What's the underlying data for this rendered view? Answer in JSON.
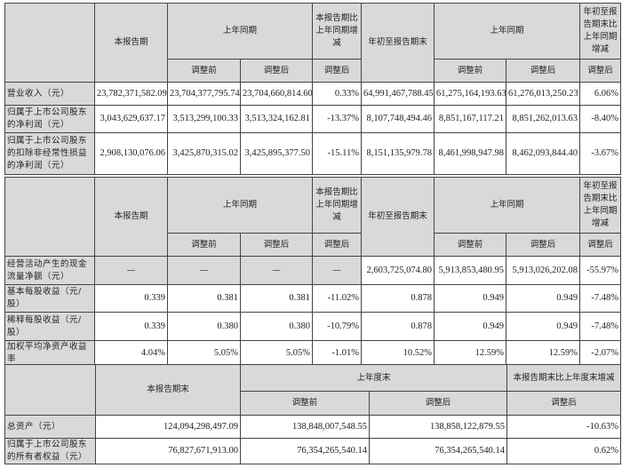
{
  "table1": {
    "h": {
      "current": "本报告期",
      "prior": "上年同期",
      "before": "调整前",
      "after": "调整后",
      "chg": "本报告期比上年同期增减",
      "ytd": "年初至报告期末",
      "prior2": "上年同期",
      "ytdchg": "年初至报告期末比上年同期增减"
    },
    "rows": [
      {
        "label": "营业收入（元）",
        "v": [
          "23,782,371,582.09",
          "23,704,377,795.74",
          "23,704,660,814.60",
          "0.33%",
          "64,991,467,788.45",
          "61,275,164,193.63",
          "61,276,013,250.23",
          "6.06%"
        ]
      },
      {
        "label": "归属于上市公司股东的净利润（元）",
        "v": [
          "3,043,629,637.17",
          "3,513,299,100.33",
          "3,513,324,162.81",
          "-13.37%",
          "8,107,748,494.46",
          "8,851,167,117.21",
          "8,851,262,013.63",
          "-8.40%"
        ]
      },
      {
        "label": "归属于上市公司股东的扣除非经常性损益的净利润（元）",
        "v": [
          "2,908,130,076.06",
          "3,425,870,315.02",
          "3,425,895,377.50",
          "-15.11%",
          "8,151,135,979.78",
          "8,461,998,947.98",
          "8,462,093,844.40",
          "-3.67%"
        ]
      }
    ]
  },
  "table2": {
    "rows": [
      {
        "label": "经营活动产生的现金流量净额（元）",
        "v": [
          "—",
          "—",
          "—",
          "—",
          "2,603,725,074.80",
          "5,913,853,480.95",
          "5,913,026,202.08",
          "-55.97%"
        ]
      },
      {
        "label": "基本每股收益（元/股）",
        "v": [
          "0.339",
          "0.381",
          "0.381",
          "-11.02%",
          "0.878",
          "0.949",
          "0.949",
          "-7.48%"
        ]
      },
      {
        "label": "稀释每股收益（元/股）",
        "v": [
          "0.339",
          "0.380",
          "0.380",
          "-10.79%",
          "0.878",
          "0.949",
          "0.949",
          "-7.48%"
        ]
      },
      {
        "label": "加权平均净资产收益率",
        "v": [
          "4.04%",
          "5.05%",
          "5.05%",
          "-1.01%",
          "10.52%",
          "12.59%",
          "12.59%",
          "-2.07%"
        ]
      }
    ]
  },
  "table3": {
    "h": {
      "current": "本报告期末",
      "prior": "上年度末",
      "before": "调整前",
      "after": "调整后",
      "chg": "本报告期末比上年度末增减",
      "chgafter": "调整后"
    },
    "rows": [
      {
        "label": "总资产（元）",
        "v": [
          "124,094,298,497.09",
          "138,848,007,548.55",
          "138,858,122,879.55",
          "-10.63%"
        ]
      },
      {
        "label": "归属于上市公司股东的所有者权益（元）",
        "v": [
          "76,827,671,913.00",
          "76,354,265,540.14",
          "76,354,265,540.14",
          "0.62%"
        ]
      }
    ]
  }
}
